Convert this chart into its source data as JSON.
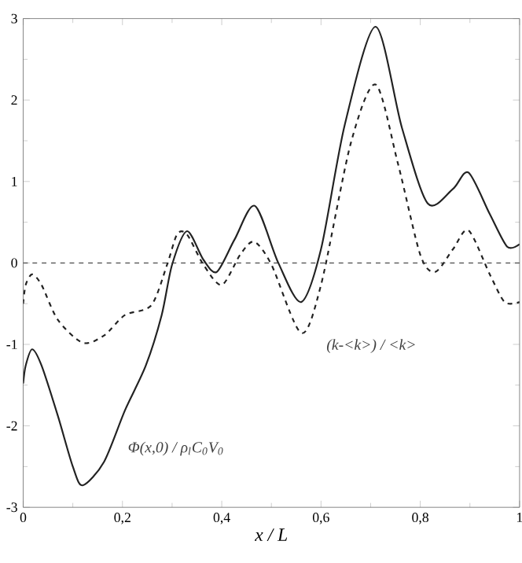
{
  "chart_data": {
    "type": "line",
    "xlabel": "*x / L*",
    "xlim": [
      0,
      1
    ],
    "ylim": [
      -3,
      3
    ],
    "xticks": [
      0,
      {
        "value": 0.2,
        "label": "0,2"
      },
      {
        "value": 0.4,
        "label": "0,4"
      },
      {
        "value": 0.6,
        "label": "0,6"
      },
      {
        "value": 0.8,
        "label": "0,8"
      },
      1
    ],
    "yticks": [
      -3,
      -2,
      -1,
      0,
      1,
      2,
      3
    ],
    "grid": false,
    "marker": "none",
    "ref_lines": [
      {
        "axis": "y",
        "value": 0,
        "line_style": "dashed",
        "color": "#333333"
      }
    ],
    "annotations": [
      "Φ(x,0) / ρ$_{l}$C$_{0}$V$_{0}$",
      "(k-<k>) / <k>"
    ],
    "series": [
      {
        "color": "#222222",
        "line_style": "solid",
        "x": [
          0,
          0.005,
          0.018,
          0.037,
          0.07,
          0.1,
          0.12,
          0.163,
          0.205,
          0.247,
          0.279,
          0.3,
          0.33,
          0.363,
          0.39,
          0.426,
          0.467,
          0.514,
          0.56,
          0.6,
          0.648,
          0.71,
          0.763,
          0.815,
          0.866,
          0.897,
          0.94,
          0.975,
          1
        ],
        "values": [
          -1.48,
          -1.26,
          -1.06,
          -1.26,
          -1.88,
          -2.5,
          -2.73,
          -2.44,
          -1.81,
          -1.26,
          -0.64,
          -0.02,
          0.39,
          0.04,
          -0.11,
          0.29,
          0.7,
          0,
          -0.48,
          0.17,
          1.7,
          2.9,
          1.66,
          0.73,
          0.91,
          1.11,
          0.6,
          0.2,
          0.23
        ]
      },
      {
        "color": "#222222",
        "line_style": "dashed",
        "x": [
          0,
          0.005,
          0.018,
          0.037,
          0.07,
          0.12,
          0.163,
          0.205,
          0.258,
          0.29,
          0.31,
          0.33,
          0.363,
          0.4,
          0.437,
          0.465,
          0.5,
          0.56,
          0.6,
          0.66,
          0.71,
          0.755,
          0.8,
          0.83,
          0.866,
          0.897,
          0.94,
          0.97,
          1
        ],
        "values": [
          -0.5,
          -0.27,
          -0.14,
          -0.27,
          -0.7,
          -0.98,
          -0.89,
          -0.64,
          -0.52,
          -0.02,
          0.35,
          0.35,
          -0.02,
          -0.27,
          0.1,
          0.26,
          -0.02,
          -0.86,
          -0.27,
          1.47,
          2.19,
          1.22,
          0.1,
          -0.11,
          0.17,
          0.4,
          -0.14,
          -0.48,
          -0.48
        ]
      }
    ]
  }
}
